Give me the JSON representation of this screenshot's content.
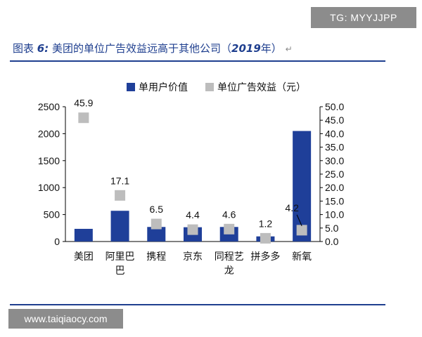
{
  "watermark_top": "TG: MYYJJPP",
  "watermark_bottom": "www.taiqiaocy.com",
  "figure_title": {
    "prefix": "图表",
    "number": "6:",
    "text": "美团的单位广告效益远高于其他公司（",
    "year": "2019",
    "suffix": "年）",
    "mark": "↵"
  },
  "chart_data": {
    "type": "bar",
    "categories": [
      "美团",
      "阿里巴巴",
      "携程",
      "京东",
      "同程艺龙",
      "拼多多",
      "新氧"
    ],
    "category_lines": [
      [
        "美团"
      ],
      [
        "阿里巴",
        "巴"
      ],
      [
        "携程"
      ],
      [
        "京东"
      ],
      [
        "同程艺",
        "龙"
      ],
      [
        "拼多多"
      ],
      [
        "新氧"
      ]
    ],
    "series": [
      {
        "name": "单用户价值",
        "axis": "left",
        "kind": "bar",
        "color": "#1f3f99",
        "values": [
          235,
          570,
          270,
          265,
          270,
          95,
          2050
        ]
      },
      {
        "name": "单位广告效益（元）",
        "axis": "right",
        "kind": "marker",
        "color": "#bdbdbd",
        "values": [
          45.9,
          17.1,
          6.5,
          4.4,
          4.6,
          1.2,
          4.2
        ],
        "labels": [
          "45.9",
          "17.1",
          "6.5",
          "4.4",
          "4.6",
          "1.2",
          "4.2"
        ]
      }
    ],
    "ylim_left": [
      0,
      2500
    ],
    "yticks_left": [
      "0",
      "500",
      "1000",
      "1500",
      "2000",
      "2500"
    ],
    "ylim_right": [
      0,
      50
    ],
    "yticks_right": [
      "0.0",
      "5.0",
      "10.0",
      "15.0",
      "20.0",
      "25.0",
      "30.0",
      "35.0",
      "40.0",
      "45.0",
      "50.0"
    ],
    "legend_position": "top",
    "grid": false
  }
}
